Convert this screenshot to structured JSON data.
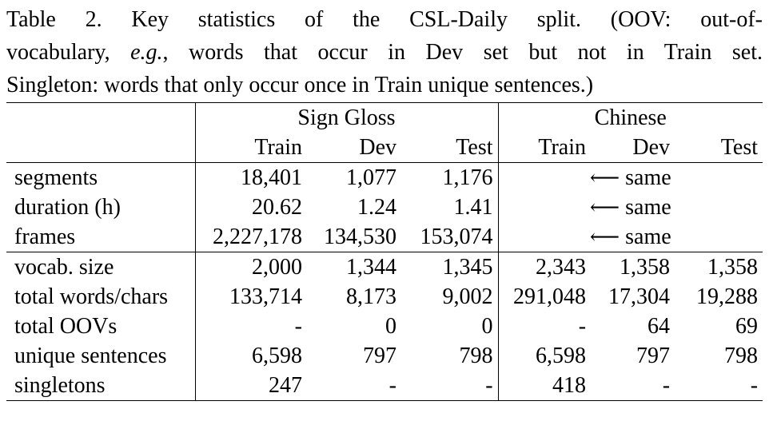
{
  "caption": {
    "line1": "Table 2. Key statistics of the CSL-Daily split.  (OOV: out-of-",
    "line2_pre": "vocabulary, ",
    "line2_ital": "e.g.",
    "line2_post": ", words that occur in Dev set but not in Train set.",
    "line3": "Singleton: words that only occur once in Train unique sentences.)"
  },
  "table": {
    "group_headers": [
      "Sign Gloss",
      "Chinese"
    ],
    "sub_headers": [
      "Train",
      "Dev",
      "Test",
      "Train",
      "Dev",
      "Test"
    ],
    "arrow": "⟵",
    "same_label": "same",
    "rows_section1": [
      {
        "label": "segments",
        "values": [
          "18,401",
          "1,077",
          "1,176"
        ]
      },
      {
        "label": "duration (h)",
        "values": [
          "20.62",
          "1.24",
          "1.41"
        ]
      },
      {
        "label": "frames",
        "values": [
          "2,227,178",
          "134,530",
          "153,074"
        ]
      }
    ],
    "rows_section2": [
      {
        "label": "vocab. size",
        "values": [
          "2,000",
          "1,344",
          "1,345",
          "2,343",
          "1,358",
          "1,358"
        ]
      },
      {
        "label": "total words/chars",
        "values": [
          "133,714",
          "8,173",
          "9,002",
          "291,048",
          "17,304",
          "19,288"
        ]
      },
      {
        "label": "total OOVs",
        "values": [
          "-",
          "0",
          "0",
          "-",
          "64",
          "69"
        ]
      },
      {
        "label": "unique sentences",
        "values": [
          "6,598",
          "797",
          "798",
          "6,598",
          "797",
          "798"
        ]
      },
      {
        "label": "singletons",
        "values": [
          "247",
          "-",
          "-",
          "418",
          "-",
          "-"
        ]
      }
    ]
  }
}
